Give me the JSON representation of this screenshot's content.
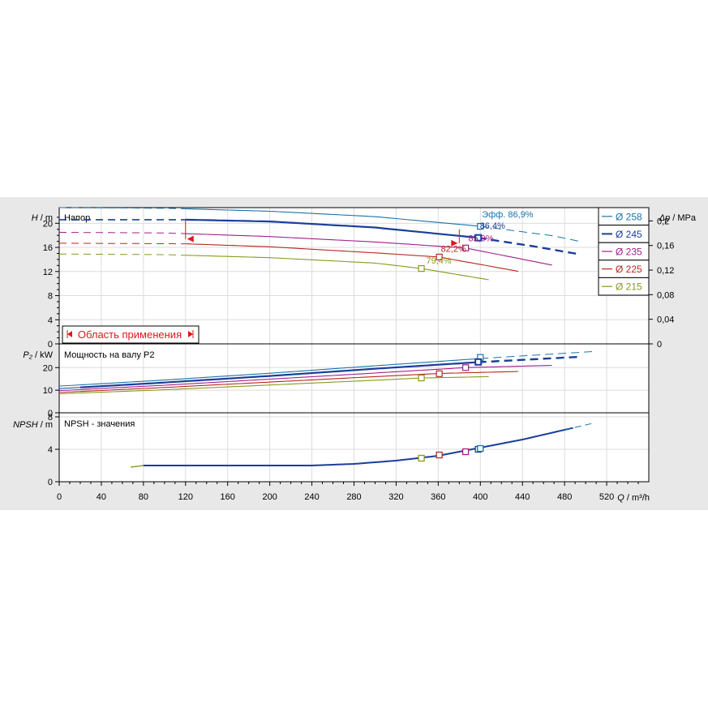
{
  "chart_data": {
    "type": "line",
    "x_label_var": "Q",
    "x_label_unit": " / m³/h",
    "x_range": [
      0,
      560
    ],
    "x_ticks": [
      0,
      40,
      80,
      120,
      160,
      200,
      240,
      280,
      320,
      360,
      400,
      440,
      480,
      520
    ],
    "x_tick_labels": [
      "0",
      "40",
      "80",
      "120",
      "160",
      "200",
      "240",
      "280",
      "320",
      "360",
      "400",
      "440",
      "480",
      "520"
    ],
    "head_panel": {
      "title": "Напор",
      "ylabel_var": "H",
      "ylabel_unit": " / m",
      "ylim": [
        0,
        22.6
      ],
      "y_ticks": [
        0,
        4,
        8,
        12,
        16,
        20
      ],
      "y_tick_labels": [
        "0",
        "4",
        "8",
        "12",
        "16",
        "20"
      ],
      "right_label_var": "Δp",
      "right_label_unit": " / MPa",
      "right_ticks": [
        0,
        0.04,
        0.08,
        0.12,
        0.16,
        0.2
      ],
      "right_tick_labels": [
        "0",
        "0,04",
        "0,08",
        "0,12",
        "0,16",
        "0,2"
      ],
      "range_label": "Область применения",
      "operating_box": {
        "q_min": 120,
        "q_max": 380,
        "h_top": 20.6,
        "h_bottom": 17.4,
        "h_mid": 16.7
      },
      "efficiency_labels": [
        {
          "text": "Эфф.  86,9%",
          "q": 400,
          "h": 21.0,
          "color": "#1a73a8"
        },
        {
          "text": "86,4%",
          "q": 398,
          "h": 19.1,
          "color": "#1a3e99"
        },
        {
          "text": "85,9%",
          "q": 387,
          "h": 17.0,
          "color": "#a0208a"
        },
        {
          "text": "82,2%",
          "q": 361,
          "h": 15.3,
          "color": "#b8281e"
        },
        {
          "text": "79,4%",
          "q": 347,
          "h": 13.3,
          "color": "#8a9a1a"
        }
      ]
    },
    "power_panel": {
      "title": "Мощность на валу P2",
      "ylabel_var": "P₂",
      "ylabel_unit": " / kW",
      "ylim": [
        0,
        30.5
      ],
      "y_ticks": [
        0,
        10,
        20
      ],
      "y_tick_labels": [
        "0",
        "10",
        "20"
      ]
    },
    "npsh_panel": {
      "title": "NPSH - значения",
      "ylabel_var": "NPSH",
      "ylabel_unit": " / m",
      "ylim": [
        0,
        8.5
      ],
      "y_ticks": [
        0,
        4,
        8
      ],
      "y_tick_labels": [
        "0",
        "4",
        "8"
      ]
    },
    "legend_position": "top-right",
    "series": [
      {
        "name": "Ø 258",
        "color": "#1a73a8",
        "head": [
          [
            0,
            22.6
          ],
          [
            100,
            22.5
          ],
          [
            200,
            22.0
          ],
          [
            300,
            21.1
          ],
          [
            400,
            19.5
          ],
          [
            470,
            17.9
          ],
          [
            497,
            16.9
          ]
        ],
        "power": [
          [
            0,
            11.8
          ],
          [
            100,
            14.5
          ],
          [
            200,
            17.5
          ],
          [
            300,
            20.8
          ],
          [
            400,
            24.0
          ],
          [
            510,
            27.2
          ]
        ],
        "bep": {
          "q": 400,
          "h": 19.5,
          "p": 24.5
        }
      },
      {
        "name": "Ø 245",
        "color": "#1a3e99",
        "head": [
          [
            0,
            20.6
          ],
          [
            120,
            20.6
          ],
          [
            200,
            20.3
          ],
          [
            300,
            19.3
          ],
          [
            398,
            17.6
          ],
          [
            450,
            16.2
          ],
          [
            496,
            14.8
          ]
        ],
        "power": [
          [
            0,
            10.7
          ],
          [
            100,
            13.4
          ],
          [
            200,
            16.3
          ],
          [
            300,
            19.5
          ],
          [
            398,
            22.4
          ],
          [
            496,
            24.8
          ]
        ],
        "bep": {
          "q": 398,
          "h": 17.6,
          "p": 22.5
        }
      },
      {
        "name": "Ø 235",
        "color": "#a0208a",
        "head": [
          [
            0,
            18.5
          ],
          [
            100,
            18.4
          ],
          [
            200,
            17.8
          ],
          [
            300,
            16.9
          ],
          [
            386,
            15.9
          ],
          [
            470,
            13.0
          ]
        ],
        "power": [
          [
            0,
            9.8
          ],
          [
            100,
            12.2
          ],
          [
            200,
            14.9
          ],
          [
            300,
            17.6
          ],
          [
            386,
            20.0
          ],
          [
            470,
            21.0
          ]
        ],
        "bep": {
          "q": 386,
          "h": 15.9,
          "p": 20.0
        }
      },
      {
        "name": "Ø 225",
        "color": "#b8281e",
        "head": [
          [
            0,
            16.7
          ],
          [
            120,
            16.6
          ],
          [
            200,
            16.1
          ],
          [
            300,
            15.1
          ],
          [
            361,
            14.4
          ],
          [
            437,
            12.0
          ]
        ],
        "power": [
          [
            0,
            9.0
          ],
          [
            100,
            11.2
          ],
          [
            200,
            13.6
          ],
          [
            300,
            16.0
          ],
          [
            361,
            17.4
          ],
          [
            437,
            18.3
          ]
        ],
        "bep": {
          "q": 361,
          "h": 14.4,
          "p": 17.3
        }
      },
      {
        "name": "Ø 215",
        "color": "#8a9a1a",
        "head": [
          [
            0,
            14.9
          ],
          [
            100,
            14.8
          ],
          [
            200,
            14.3
          ],
          [
            300,
            13.4
          ],
          [
            344,
            12.5
          ],
          [
            409,
            10.6
          ]
        ],
        "power": [
          [
            0,
            8.4
          ],
          [
            100,
            10.2
          ],
          [
            200,
            12.3
          ],
          [
            300,
            14.4
          ],
          [
            344,
            15.4
          ],
          [
            409,
            16.0
          ]
        ],
        "bep": {
          "q": 344,
          "h": 12.5,
          "p": 15.4
        }
      }
    ],
    "npsh_curve": [
      [
        68,
        1.8
      ],
      [
        80,
        2.0
      ],
      [
        160,
        2.0
      ],
      [
        240,
        2.0
      ],
      [
        280,
        2.2
      ],
      [
        320,
        2.6
      ],
      [
        360,
        3.2
      ],
      [
        400,
        4.2
      ],
      [
        440,
        5.2
      ],
      [
        480,
        6.4
      ],
      [
        510,
        7.3
      ]
    ],
    "npsh_points": [
      {
        "q": 344,
        "npsh": 2.9,
        "color": "#8a9a1a"
      },
      {
        "q": 361,
        "npsh": 3.3,
        "color": "#b8281e"
      },
      {
        "q": 386,
        "npsh": 3.7,
        "color": "#a0208a"
      },
      {
        "q": 398,
        "npsh": 4.0,
        "color": "#1a3e99"
      },
      {
        "q": 400,
        "npsh": 4.1,
        "color": "#1a73a8"
      }
    ]
  }
}
